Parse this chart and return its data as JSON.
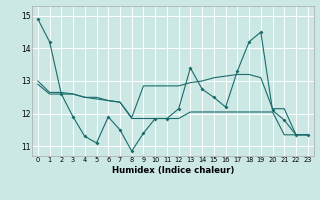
{
  "xlabel": "Humidex (Indice chaleur)",
  "xlim": [
    -0.5,
    23.5
  ],
  "ylim": [
    10.7,
    15.3
  ],
  "xticks": [
    0,
    1,
    2,
    3,
    4,
    5,
    6,
    7,
    8,
    9,
    10,
    11,
    12,
    13,
    14,
    15,
    16,
    17,
    18,
    19,
    20,
    21,
    22,
    23
  ],
  "yticks": [
    11,
    12,
    13,
    14,
    15
  ],
  "bg_color": "#cce8e5",
  "grid_color": "#ffffff",
  "line_color": "#1a6b6b",
  "line1_y": [
    14.9,
    14.2,
    12.6,
    11.9,
    11.3,
    11.1,
    11.9,
    11.5,
    10.85,
    11.4,
    11.85,
    11.85,
    12.15,
    13.4,
    12.75,
    12.5,
    12.2,
    13.3,
    14.2,
    14.5,
    12.1,
    11.8,
    11.35,
    11.35
  ],
  "line2_y": [
    12.9,
    12.6,
    12.6,
    12.6,
    12.5,
    12.5,
    12.4,
    12.35,
    11.85,
    11.85,
    11.85,
    11.85,
    11.85,
    12.05,
    12.05,
    12.05,
    12.05,
    12.05,
    12.05,
    12.05,
    12.05,
    11.35,
    11.35,
    11.35
  ],
  "line3_y": [
    13.0,
    12.65,
    12.65,
    12.6,
    12.5,
    12.45,
    12.4,
    12.35,
    11.88,
    12.85,
    12.85,
    12.85,
    12.85,
    12.95,
    13.0,
    13.1,
    13.15,
    13.2,
    13.2,
    13.1,
    12.15,
    12.15,
    11.35,
    11.35
  ]
}
